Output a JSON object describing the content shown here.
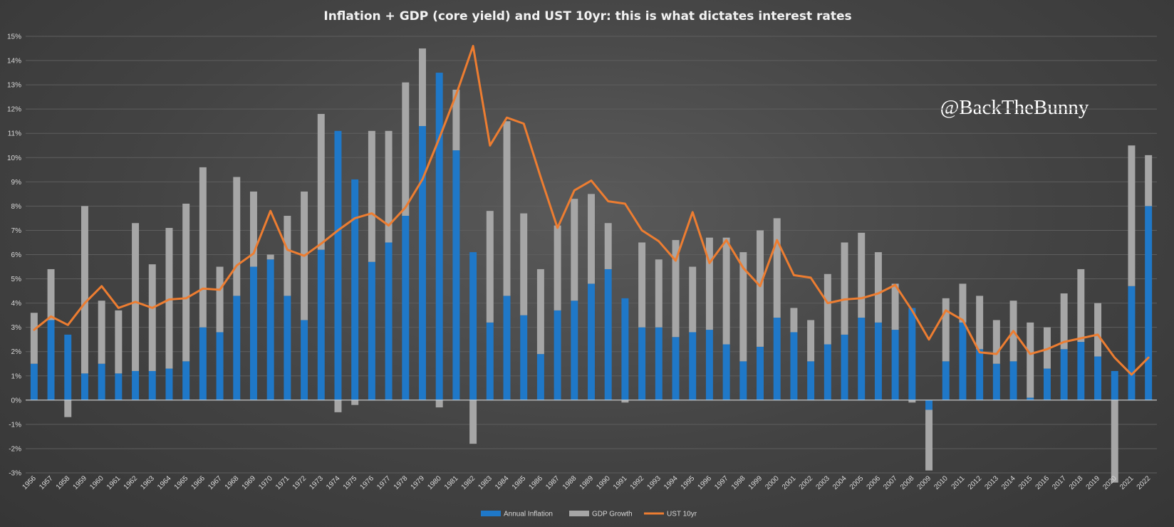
{
  "chart_data": {
    "type": "bar",
    "title": "Inflation + GDP (core yield) and UST 10yr: this is what dictates interest rates",
    "watermark": "@BackTheBunny",
    "ylim": [
      -3,
      15
    ],
    "yticks": [
      "-3%",
      "-2%",
      "-1%",
      "0%",
      "1%",
      "2%",
      "3%",
      "4%",
      "5%",
      "6%",
      "7%",
      "8%",
      "9%",
      "10%",
      "11%",
      "12%",
      "13%",
      "14%",
      "15%"
    ],
    "grid": true,
    "legend_position": "bottom",
    "categories": [
      "1956",
      "1957",
      "1958",
      "1959",
      "1960",
      "1961",
      "1962",
      "1963",
      "1964",
      "1965",
      "1966",
      "1967",
      "1968",
      "1969",
      "1970",
      "1971",
      "1972",
      "1973",
      "1974",
      "1975",
      "1976",
      "1977",
      "1978",
      "1979",
      "1980",
      "1981",
      "1982",
      "1983",
      "1984",
      "1985",
      "1986",
      "1987",
      "1988",
      "1989",
      "1990",
      "1991",
      "1992",
      "1993",
      "1994",
      "1995",
      "1996",
      "1997",
      "1998",
      "1999",
      "2000",
      "2001",
      "2002",
      "2003",
      "2004",
      "2005",
      "2006",
      "2007",
      "2008",
      "2009",
      "2010",
      "2011",
      "2012",
      "2013",
      "2014",
      "2015",
      "2016",
      "2017",
      "2018",
      "2019",
      "2020",
      "2021",
      "2022"
    ],
    "series": [
      {
        "name": "Annual Inflation",
        "kind": "bar",
        "color": "#1f78c8",
        "values": [
          1.5,
          3.3,
          2.7,
          1.1,
          1.5,
          1.1,
          1.2,
          1.2,
          1.3,
          1.6,
          3.0,
          2.8,
          4.3,
          5.5,
          5.8,
          4.3,
          3.3,
          6.2,
          11.1,
          9.1,
          5.7,
          6.5,
          7.6,
          11.3,
          13.5,
          10.3,
          6.1,
          3.2,
          4.3,
          3.5,
          1.9,
          3.7,
          4.1,
          4.8,
          5.4,
          4.2,
          3.0,
          3.0,
          2.6,
          2.8,
          2.9,
          2.3,
          1.6,
          2.2,
          3.4,
          2.8,
          1.6,
          2.3,
          2.7,
          3.4,
          3.2,
          2.9,
          3.8,
          -0.4,
          1.6,
          3.2,
          2.1,
          1.5,
          1.6,
          0.1,
          1.3,
          2.1,
          2.4,
          1.8,
          1.2,
          4.7,
          8.0
        ]
      },
      {
        "name": "GDP Growth",
        "kind": "bar",
        "color": "#a6a6a6",
        "values": [
          2.1,
          2.1,
          -0.7,
          6.9,
          2.6,
          2.6,
          6.1,
          4.4,
          5.8,
          6.5,
          6.6,
          2.7,
          4.9,
          3.1,
          0.2,
          3.3,
          5.3,
          5.6,
          -0.5,
          -0.2,
          5.4,
          4.6,
          5.5,
          3.2,
          -0.3,
          2.5,
          -1.8,
          4.6,
          7.2,
          4.2,
          3.5,
          3.5,
          4.2,
          3.7,
          1.9,
          -0.1,
          3.5,
          2.8,
          4.0,
          2.7,
          3.8,
          4.4,
          4.5,
          4.8,
          4.1,
          1.0,
          1.7,
          2.9,
          3.8,
          3.5,
          2.9,
          1.9,
          -0.1,
          -2.5,
          2.6,
          1.6,
          2.2,
          1.8,
          2.5,
          3.1,
          1.7,
          2.3,
          3.0,
          2.2,
          -3.4,
          5.8,
          2.1
        ]
      },
      {
        "name": "UST 10yr",
        "kind": "line",
        "color": "#ed7d31",
        "values": [
          2.9,
          3.45,
          3.1,
          4.0,
          4.7,
          3.8,
          4.05,
          3.8,
          4.15,
          4.2,
          4.6,
          4.55,
          5.55,
          6.05,
          7.8,
          6.2,
          5.95,
          6.45,
          7.0,
          7.5,
          7.7,
          7.2,
          7.95,
          9.1,
          10.8,
          12.6,
          14.6,
          10.5,
          11.65,
          11.4,
          9.2,
          7.1,
          8.65,
          9.05,
          8.2,
          8.1,
          7.0,
          6.55,
          5.75,
          7.75,
          5.65,
          6.6,
          5.45,
          4.7,
          6.6,
          5.15,
          5.05,
          4.0,
          4.15,
          4.2,
          4.4,
          4.75,
          3.7,
          2.5,
          3.7,
          3.3,
          1.97,
          1.9,
          2.85,
          1.9,
          2.1,
          2.4,
          2.55,
          2.7,
          1.75,
          1.05,
          1.75
        ]
      }
    ]
  }
}
